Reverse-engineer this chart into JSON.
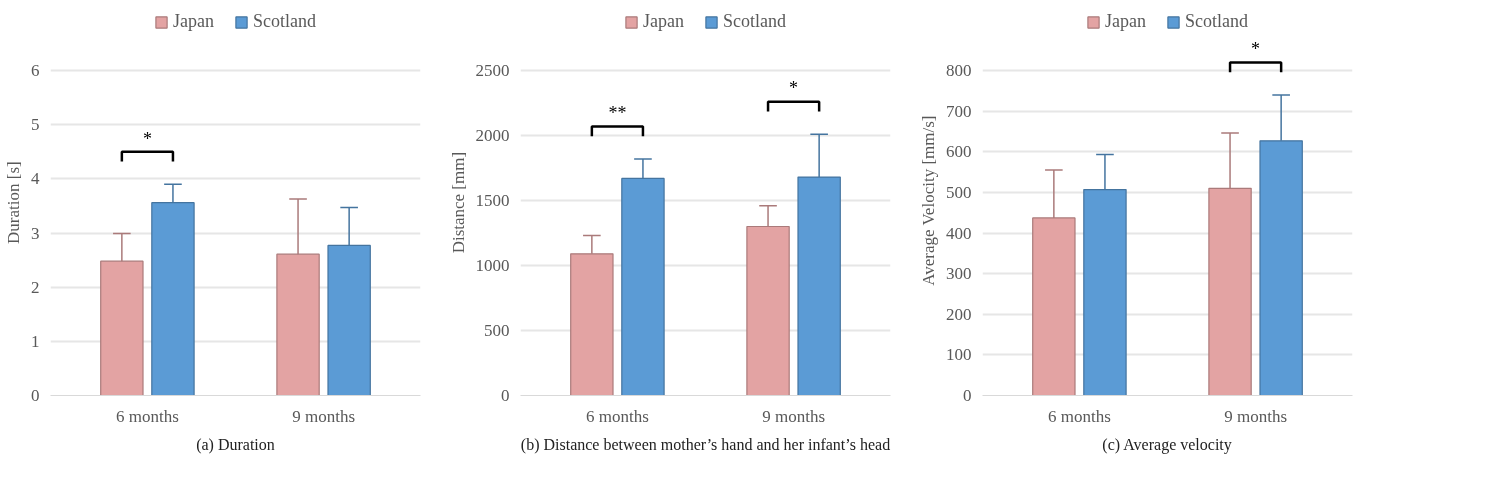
{
  "chart_data": [
    {
      "type": "bar",
      "title": "(a) Duration",
      "ylabel": "Duration  [s]",
      "categories": [
        "6 months",
        "9 months"
      ],
      "series": [
        {
          "name": "Japan",
          "color": "#e3a3a3",
          "values": [
            2.48,
            2.61
          ],
          "errors": [
            [
              2.48,
              2.99
            ],
            [
              2.61,
              3.63
            ]
          ]
        },
        {
          "name": "Scotland",
          "color": "#5b9bd5",
          "values": [
            3.56,
            2.77
          ],
          "errors": [
            [
              3.56,
              3.9
            ],
            [
              2.77,
              3.47
            ]
          ]
        }
      ],
      "ylim": [
        0,
        6
      ],
      "yticks": [
        0,
        1,
        2,
        3,
        4,
        5,
        6
      ],
      "grid": "y",
      "legend": "top",
      "annotations": [
        "*"
      ]
    },
    {
      "type": "bar",
      "title": "(b) Distance between mother’s hand and her infant’s head",
      "ylabel": "Distance  [mm]",
      "categories": [
        "6 months",
        "9 months"
      ],
      "series": [
        {
          "name": "Japan",
          "color": "#e3a3a3",
          "values": [
            1090,
            1300
          ],
          "errors": [
            [
              1090,
              1230
            ],
            [
              1300,
              1460
            ]
          ]
        },
        {
          "name": "Scotland",
          "color": "#5b9bd5",
          "values": [
            1670,
            1680
          ],
          "errors": [
            [
              1670,
              1820
            ],
            [
              1680,
              2010
            ]
          ]
        }
      ],
      "ylim": [
        0,
        2500
      ],
      "yticks": [
        0,
        500,
        1000,
        1500,
        2000,
        2500
      ],
      "grid": "y",
      "legend": "top",
      "annotations": [
        "**",
        "*"
      ]
    },
    {
      "type": "bar",
      "title": "(c) Average velocity",
      "ylabel": "Average Velocity [mm/s]",
      "categories": [
        "6 months",
        "9 months"
      ],
      "series": [
        {
          "name": "Japan",
          "color": "#e3a3a3",
          "values": [
            437,
            510
          ],
          "errors": [
            [
              437,
              555
            ],
            [
              510,
              646
            ]
          ]
        },
        {
          "name": "Scotland",
          "color": "#5b9bd5",
          "values": [
            507,
            627
          ],
          "errors": [
            [
              507,
              593
            ],
            [
              627,
              740
            ]
          ]
        }
      ],
      "ylim": [
        0,
        800
      ],
      "yticks": [
        0,
        100,
        200,
        300,
        400,
        500,
        600,
        700,
        800
      ],
      "grid": "y",
      "legend": "top",
      "annotations": [
        "*"
      ]
    }
  ]
}
